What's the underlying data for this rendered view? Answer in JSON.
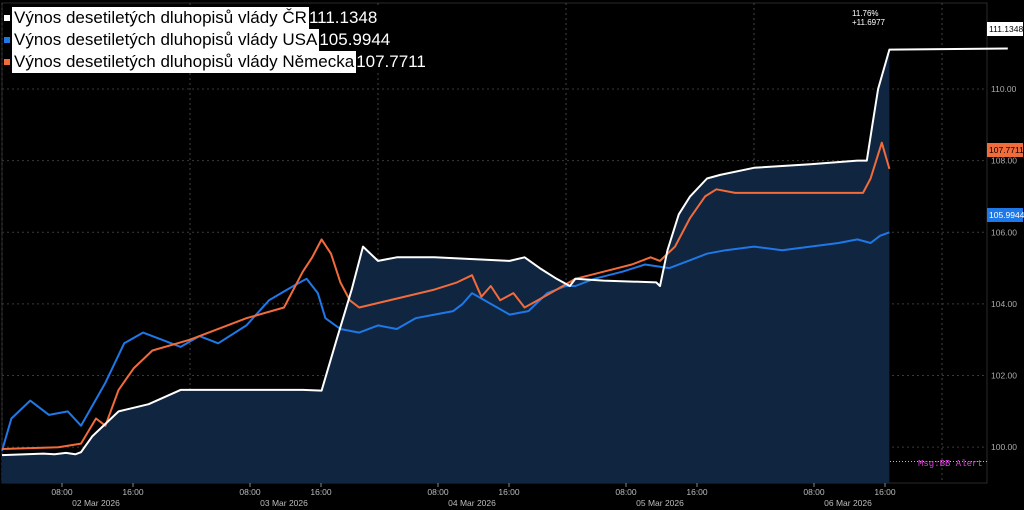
{
  "chart_data": {
    "type": "line",
    "ylim": [
      99.0,
      112.4
    ],
    "y_ticks": [
      "110.00",
      "108.00",
      "106.00",
      "104.00",
      "102.00",
      "100.00"
    ],
    "y_tick_values": [
      110,
      108,
      106,
      104,
      102,
      100
    ],
    "x_tick_times": [
      "08:00",
      "16:00",
      "08:00",
      "16:00",
      "08:00",
      "16:00",
      "08:00",
      "16:00",
      "08:00",
      "16:00"
    ],
    "x_day_labels": [
      "02 Mar 2026",
      "03 Mar 2026",
      "04 Mar 2026",
      "05 Mar 2026",
      "06 Mar 2026"
    ],
    "baseline": 99.6,
    "series": [
      {
        "name": "Výnos desetiletých dluhopisů vlády ČR",
        "last": "111.1348",
        "color": "#ffffff",
        "points": [
          [
            0,
            99.78
          ],
          [
            0.22,
            99.82
          ],
          [
            0.28,
            99.8
          ],
          [
            0.34,
            99.84
          ],
          [
            0.39,
            99.8
          ],
          [
            0.42,
            99.86
          ],
          [
            0.48,
            100.3
          ],
          [
            0.62,
            101.0
          ],
          [
            0.78,
            101.2
          ],
          [
            0.95,
            101.6
          ],
          [
            1.3,
            101.6
          ],
          [
            1.6,
            101.6
          ],
          [
            1.7,
            101.58
          ],
          [
            1.78,
            103.0
          ],
          [
            1.86,
            104.4
          ],
          [
            1.92,
            105.6
          ],
          [
            2.0,
            105.2
          ],
          [
            2.1,
            105.3
          ],
          [
            2.3,
            105.3
          ],
          [
            2.7,
            105.2
          ],
          [
            2.78,
            105.3
          ],
          [
            2.86,
            105.0
          ],
          [
            2.95,
            104.7
          ],
          [
            3.02,
            104.5
          ],
          [
            3.05,
            104.7
          ],
          [
            3.2,
            104.65
          ],
          [
            3.48,
            104.6
          ],
          [
            3.5,
            104.5
          ],
          [
            3.54,
            105.5
          ],
          [
            3.6,
            106.5
          ],
          [
            3.66,
            107.0
          ],
          [
            3.75,
            107.5
          ],
          [
            3.82,
            107.6
          ],
          [
            4.0,
            107.8
          ],
          [
            4.3,
            107.9
          ],
          [
            4.55,
            108.0
          ],
          [
            4.6,
            108.0
          ],
          [
            4.63,
            109.0
          ],
          [
            4.66,
            110.0
          ],
          [
            4.72,
            111.1
          ],
          [
            5.35,
            111.13
          ]
        ]
      },
      {
        "name": "Výnos desetiletých dluhopisů vlády USA",
        "last": "105.9944",
        "color": "#1f78e8",
        "points": [
          [
            0,
            99.9
          ],
          [
            0.05,
            100.8
          ],
          [
            0.15,
            101.3
          ],
          [
            0.25,
            100.9
          ],
          [
            0.35,
            101.0
          ],
          [
            0.42,
            100.6
          ],
          [
            0.55,
            101.8
          ],
          [
            0.65,
            102.9
          ],
          [
            0.75,
            103.2
          ],
          [
            0.85,
            103.0
          ],
          [
            0.95,
            102.8
          ],
          [
            1.05,
            103.1
          ],
          [
            1.15,
            102.9
          ],
          [
            1.3,
            103.4
          ],
          [
            1.42,
            104.1
          ],
          [
            1.55,
            104.5
          ],
          [
            1.62,
            104.7
          ],
          [
            1.68,
            104.3
          ],
          [
            1.72,
            103.6
          ],
          [
            1.8,
            103.3
          ],
          [
            1.9,
            103.2
          ],
          [
            2.0,
            103.4
          ],
          [
            2.1,
            103.3
          ],
          [
            2.2,
            103.6
          ],
          [
            2.3,
            103.7
          ],
          [
            2.4,
            103.8
          ],
          [
            2.45,
            104.0
          ],
          [
            2.5,
            104.3
          ],
          [
            2.6,
            104.0
          ],
          [
            2.7,
            103.7
          ],
          [
            2.8,
            103.8
          ],
          [
            2.9,
            104.3
          ],
          [
            3.0,
            104.5
          ],
          [
            3.05,
            104.5
          ],
          [
            3.15,
            104.7
          ],
          [
            3.3,
            104.9
          ],
          [
            3.42,
            105.1
          ],
          [
            3.55,
            105.0
          ],
          [
            3.65,
            105.2
          ],
          [
            3.75,
            105.4
          ],
          [
            3.85,
            105.5
          ],
          [
            4.0,
            105.6
          ],
          [
            4.15,
            105.5
          ],
          [
            4.3,
            105.6
          ],
          [
            4.45,
            105.7
          ],
          [
            4.55,
            105.8
          ],
          [
            4.62,
            105.7
          ],
          [
            4.67,
            105.9
          ],
          [
            4.72,
            106.0
          ]
        ]
      },
      {
        "name": "Výnos desetiletých dluhopisů vlády Německa",
        "last": "107.7711",
        "color": "#f26b3a",
        "points": [
          [
            0,
            99.95
          ],
          [
            0.3,
            100.0
          ],
          [
            0.42,
            100.1
          ],
          [
            0.5,
            100.8
          ],
          [
            0.55,
            100.6
          ],
          [
            0.62,
            101.6
          ],
          [
            0.7,
            102.2
          ],
          [
            0.8,
            102.7
          ],
          [
            1.0,
            103.0
          ],
          [
            1.3,
            103.6
          ],
          [
            1.5,
            103.9
          ],
          [
            1.6,
            104.9
          ],
          [
            1.65,
            105.3
          ],
          [
            1.7,
            105.8
          ],
          [
            1.75,
            105.4
          ],
          [
            1.8,
            104.6
          ],
          [
            1.85,
            104.1
          ],
          [
            1.9,
            103.9
          ],
          [
            2.3,
            104.4
          ],
          [
            2.42,
            104.6
          ],
          [
            2.5,
            104.8
          ],
          [
            2.55,
            104.2
          ],
          [
            2.6,
            104.5
          ],
          [
            2.65,
            104.1
          ],
          [
            2.72,
            104.3
          ],
          [
            2.78,
            103.9
          ],
          [
            2.85,
            104.1
          ],
          [
            2.95,
            104.4
          ],
          [
            3.05,
            104.7
          ],
          [
            3.2,
            104.9
          ],
          [
            3.35,
            105.1
          ],
          [
            3.45,
            105.3
          ],
          [
            3.5,
            105.2
          ],
          [
            3.58,
            105.6
          ],
          [
            3.66,
            106.4
          ],
          [
            3.74,
            107.0
          ],
          [
            3.8,
            107.2
          ],
          [
            3.9,
            107.1
          ],
          [
            4.1,
            107.1
          ],
          [
            4.3,
            107.1
          ],
          [
            4.58,
            107.1
          ],
          [
            4.62,
            107.5
          ],
          [
            4.65,
            108.0
          ],
          [
            4.68,
            108.5
          ],
          [
            4.72,
            107.77
          ]
        ]
      }
    ],
    "annotations": [
      "11.76%",
      "+11.6977"
    ],
    "right_tags": [
      "111.1348",
      "107.7711",
      "105.9944"
    ],
    "shade_color": "#0f2540"
  },
  "status": {
    "msg": "Msg:BB Alert"
  }
}
